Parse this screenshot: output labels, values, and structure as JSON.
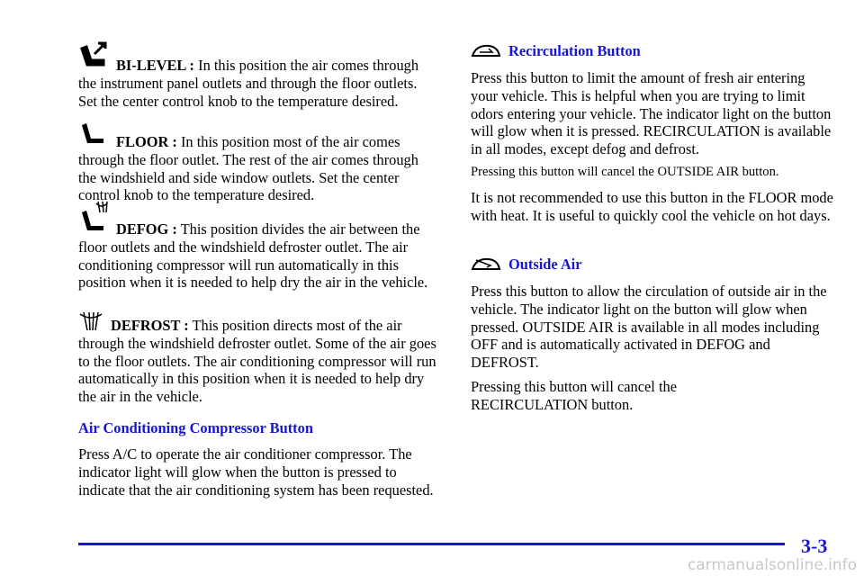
{
  "left_column": {
    "items": [
      {
        "label": "BI-LEVEL :",
        "text": "In this position the air comes through the instrument panel outlets and through the floor outlets. Set the center control knob to the temperature desired."
      },
      {
        "label": "FLOOR :",
        "text": "In this position most of the air comes through the floor outlet. The rest of the air comes through the windshield and side window outlets. Set the center control knob to the temperature desired."
      },
      {
        "label": "DEFOG :",
        "text": "This position divides the air between the floor outlets and the windshield defroster outlet. The air conditioning compressor will run automatically in this position when it is needed to help dry the air in the vehicle."
      },
      {
        "label": "DEFROST :",
        "text": "This position directs most of the air through the windshield defroster outlet. Some of the air goes to the floor outlets. The air conditioning compressor will run automatically in this position when it is needed to help dry the air in the vehicle."
      }
    ],
    "heading": "Air Conditioning Compressor Button",
    "paragraph": "Press A/C to operate the air conditioner compressor. The indicator light will glow when the button is pressed to indicate that the air conditioning system has been requested."
  },
  "right_column": {
    "heading_1": "Recirculation Button",
    "paragraph_1": "Press this button to limit the amount of fresh air entering your vehicle. This is helpful when you are trying to limit odors entering your vehicle. The indicator light on the button will glow when it is pressed. RECIRCULATION is available in all modes, except defog and defrost.",
    "note": "Pressing this button will cancel the OUTSIDE AIR button.",
    "paragraph_2": "It is not recommended to use this button in the FLOOR mode with heat. It is useful to quickly cool the vehicle on hot days.",
    "heading_2": "Outside Air",
    "paragraph_3": "Press this button to allow the circulation of outside air in the vehicle. The indicator light on the button will glow when pressed. OUTSIDE AIR is available in all modes including OFF and is automatically activated in DEFOG and DEFROST.",
    "paragraph_4": "Pressing this button will cancel the RECIRCULATION button."
  },
  "footer": {
    "page_number": "3-3",
    "watermark": "carmanualsonline.info"
  }
}
